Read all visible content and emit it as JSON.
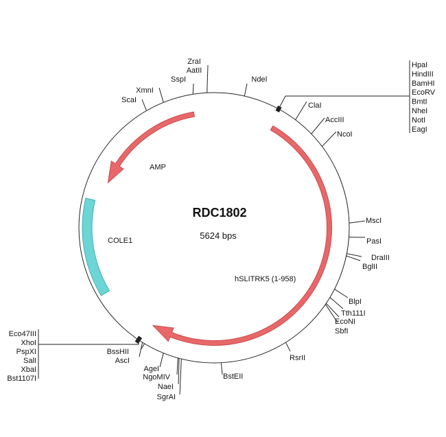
{
  "plasmid": {
    "name": "RDC1802",
    "size_label": "5624 bps"
  },
  "colors": {
    "cds": "#e8686a",
    "cds_stroke": "#c94a4c",
    "ori": "#6dd5d5",
    "ori_stroke": "#3fb0b0",
    "backbone": "#222222"
  },
  "features": [
    {
      "name": "AMP",
      "type": "cds"
    },
    {
      "name": "COLE1",
      "type": "origin"
    },
    {
      "name": "hSLITRK5 (1-958)",
      "type": "cds"
    }
  ],
  "enzymes": [
    "ZraI",
    "AatII",
    "SspI",
    "XmnI",
    "ScaI",
    "NdeI",
    "ClaI",
    "AccIII",
    "NcoI",
    "MscI",
    "PasI",
    "DraIII",
    "BglII",
    "BlpI",
    "Tth111I",
    "EcoNI",
    "SbfI",
    "RsrII",
    "BstEII",
    "SgrAI",
    "NaeI",
    "NgoMIV",
    "AgeI",
    "BssHII",
    "AscI"
  ],
  "mcs_right": [
    "HpaI",
    "HindIII",
    "BamHI",
    "EcoRV",
    "BmtI",
    "NheI",
    "NotI",
    "EagI"
  ],
  "mcs_left": [
    "Eco47III",
    "XhoI",
    "PspXI",
    "SalI",
    "XbaI",
    "Bst1107I"
  ]
}
